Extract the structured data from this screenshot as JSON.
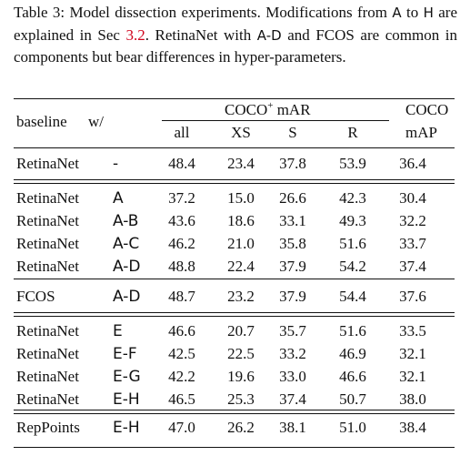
{
  "caption": {
    "lead": "Table 3: Model dissection experiments. Modifications from ",
    "a": "A",
    "to": " to ",
    "h": "H",
    "mid": " are explained in Sec ",
    "ref": "3.2",
    "rest1": ". RetinaNet with ",
    "ad": "A-D",
    "rest2": " and FCOS are common in components but bear differences in hyper-parameters."
  },
  "header": {
    "baseline": "baseline",
    "with": "w/",
    "coco_plus": "COCO",
    "coco_plus_sup": "+",
    "coco_plus_metric": "mAR",
    "cols": [
      "all",
      "XS",
      "S",
      "R"
    ],
    "coco": "COCO",
    "coco_metric": "mAP"
  },
  "groups": [
    [
      {
        "baseline": "RetinaNet",
        "with": "-",
        "all": "48.4",
        "xs": "23.4",
        "s": "37.8",
        "r": "53.9",
        "map": "36.4"
      }
    ],
    [
      {
        "baseline": "RetinaNet",
        "with": "A",
        "all": "37.2",
        "xs": "15.0",
        "s": "26.6",
        "r": "42.3",
        "map": "30.4"
      },
      {
        "baseline": "RetinaNet",
        "with": "A-B",
        "all": "43.6",
        "xs": "18.6",
        "s": "33.1",
        "r": "49.3",
        "map": "32.2"
      },
      {
        "baseline": "RetinaNet",
        "with": "A-C",
        "all": "46.2",
        "xs": "21.0",
        "s": "35.8",
        "r": "51.6",
        "map": "33.7"
      },
      {
        "baseline": "RetinaNet",
        "with": "A-D",
        "all": "48.8",
        "xs": "22.4",
        "s": "37.9",
        "r": "54.2",
        "map": "37.4"
      }
    ],
    [
      {
        "baseline": "FCOS",
        "with": "A-D",
        "all": "48.7",
        "xs": "23.2",
        "s": "37.9",
        "r": "54.4",
        "map": "37.6"
      }
    ],
    [
      {
        "baseline": "RetinaNet",
        "with": "E",
        "all": "46.6",
        "xs": "20.7",
        "s": "35.7",
        "r": "51.6",
        "map": "33.5"
      },
      {
        "baseline": "RetinaNet",
        "with": "E-F",
        "all": "42.5",
        "xs": "22.5",
        "s": "33.2",
        "r": "46.9",
        "map": "32.1"
      },
      {
        "baseline": "RetinaNet",
        "with": "E-G",
        "all": "42.2",
        "xs": "19.6",
        "s": "33.0",
        "r": "46.6",
        "map": "32.1"
      },
      {
        "baseline": "RetinaNet",
        "with": "E-H",
        "all": "46.5",
        "xs": "25.3",
        "s": "37.4",
        "r": "50.7",
        "map": "38.0"
      }
    ],
    [
      {
        "baseline": "RepPoints",
        "with": "E-H",
        "all": "47.0",
        "xs": "26.2",
        "s": "38.1",
        "r": "51.0",
        "map": "38.4"
      }
    ]
  ]
}
